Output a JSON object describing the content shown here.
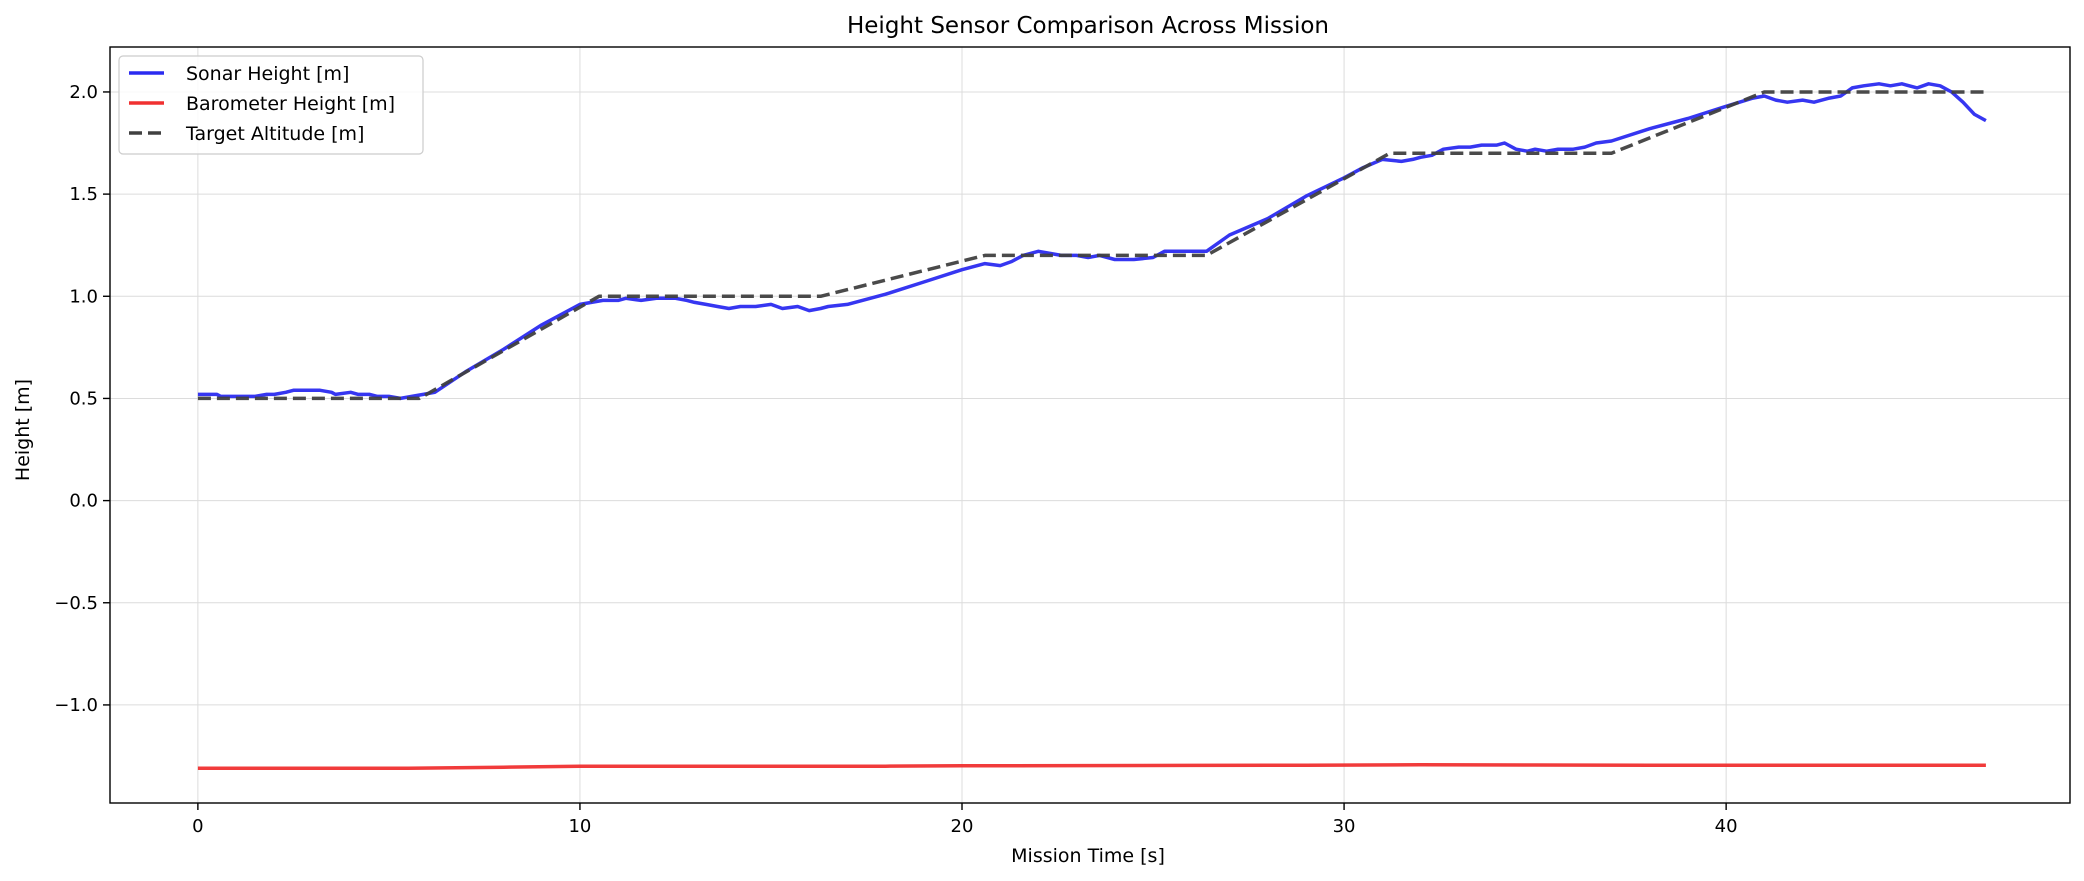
{
  "chart_data": {
    "type": "line",
    "title": "Height Sensor Comparison Across Mission",
    "xlabel": "Mission Time [s]",
    "ylabel": "Height [m]",
    "xlim": [
      -2.3,
      49.0
    ],
    "ylim": [
      -1.48,
      2.22
    ],
    "xticks": [
      0,
      10,
      20,
      30,
      40
    ],
    "xtick_labels": [
      "0",
      "10",
      "20",
      "30",
      "40"
    ],
    "yticks": [
      -1.0,
      -0.5,
      0.0,
      0.5,
      1.0,
      1.5,
      2.0
    ],
    "ytick_labels": [
      "−1.0",
      "−0.5",
      "0.0",
      "0.5",
      "1.0",
      "1.5",
      "2.0"
    ],
    "grid": true,
    "legend_position": "top-left",
    "series": [
      {
        "name": "Sonar Height [m]",
        "color": "#2b2bf0",
        "style": "solid",
        "x": [
          0,
          0.5,
          0.6,
          1.0,
          1.5,
          1.8,
          2.0,
          2.3,
          2.5,
          3.0,
          3.2,
          3.5,
          3.6,
          4.0,
          4.2,
          4.5,
          4.7,
          5.0,
          5.3,
          5.6,
          5.9,
          6.2,
          7.0,
          8.0,
          9.0,
          10.0,
          10.6,
          11.0,
          11.2,
          11.6,
          12.0,
          12.5,
          12.8,
          13.0,
          13.3,
          13.6,
          13.9,
          14.2,
          14.6,
          15.0,
          15.3,
          15.7,
          16.0,
          16.3,
          16.5,
          17.0,
          18.0,
          19.0,
          20.0,
          20.6,
          21.0,
          21.3,
          21.6,
          22.0,
          22.3,
          22.6,
          23.0,
          23.3,
          23.6,
          24.0,
          24.5,
          25.0,
          25.3,
          25.5,
          26.0,
          26.4,
          27.0,
          28.0,
          29.0,
          30.0,
          30.5,
          31.0,
          31.5,
          31.8,
          32.0,
          32.3,
          32.6,
          33.0,
          33.3,
          33.6,
          34.0,
          34.2,
          34.5,
          34.8,
          35.0,
          35.3,
          35.6,
          36.0,
          36.3,
          36.6,
          37.0,
          38.0,
          39.0,
          40.0,
          40.7,
          41.0,
          41.3,
          41.6,
          42.0,
          42.3,
          42.7,
          43.0,
          43.3,
          43.6,
          44.0,
          44.3,
          44.6,
          45.0,
          45.3,
          45.6,
          45.9,
          46.2,
          46.5,
          46.8
        ],
        "y": [
          0.52,
          0.52,
          0.51,
          0.51,
          0.51,
          0.52,
          0.52,
          0.53,
          0.54,
          0.54,
          0.54,
          0.53,
          0.52,
          0.53,
          0.52,
          0.52,
          0.51,
          0.51,
          0.5,
          0.51,
          0.52,
          0.53,
          0.63,
          0.74,
          0.86,
          0.96,
          0.98,
          0.98,
          0.99,
          0.98,
          0.99,
          0.99,
          0.98,
          0.97,
          0.96,
          0.95,
          0.94,
          0.95,
          0.95,
          0.96,
          0.94,
          0.95,
          0.93,
          0.94,
          0.95,
          0.96,
          1.01,
          1.07,
          1.13,
          1.16,
          1.15,
          1.17,
          1.2,
          1.22,
          1.21,
          1.2,
          1.2,
          1.19,
          1.2,
          1.18,
          1.18,
          1.19,
          1.22,
          1.22,
          1.22,
          1.22,
          1.3,
          1.38,
          1.49,
          1.58,
          1.63,
          1.67,
          1.66,
          1.67,
          1.68,
          1.69,
          1.72,
          1.73,
          1.73,
          1.74,
          1.74,
          1.75,
          1.72,
          1.71,
          1.72,
          1.71,
          1.72,
          1.72,
          1.73,
          1.75,
          1.76,
          1.82,
          1.87,
          1.93,
          1.97,
          1.98,
          1.96,
          1.95,
          1.96,
          1.95,
          1.97,
          1.98,
          2.02,
          2.03,
          2.04,
          2.03,
          2.04,
          2.02,
          2.04,
          2.03,
          2.0,
          1.95,
          1.89,
          1.86
        ]
      },
      {
        "name": "Barometer Height [m]",
        "color": "#f03030",
        "style": "solid",
        "x": [
          0,
          2,
          4,
          5.5,
          8,
          10,
          12,
          15,
          18,
          20,
          23,
          26,
          29,
          32,
          35,
          38,
          41,
          44,
          46.8
        ],
        "y": [
          -1.31,
          -1.31,
          -1.31,
          -1.31,
          -1.305,
          -1.3,
          -1.3,
          -1.3,
          -1.3,
          -1.298,
          -1.297,
          -1.296,
          -1.295,
          -1.293,
          -1.294,
          -1.295,
          -1.295,
          -1.295,
          -1.295
        ]
      },
      {
        "name": "Target Altitude [m]",
        "color": "#404040",
        "style": "dashed",
        "x": [
          0,
          5.8,
          10.5,
          16.3,
          20.6,
          26.4,
          31.2,
          37.0,
          41.0,
          46.8
        ],
        "y": [
          0.5,
          0.5,
          1.0,
          1.0,
          1.2,
          1.2,
          1.7,
          1.7,
          2.0,
          2.0
        ]
      }
    ]
  }
}
